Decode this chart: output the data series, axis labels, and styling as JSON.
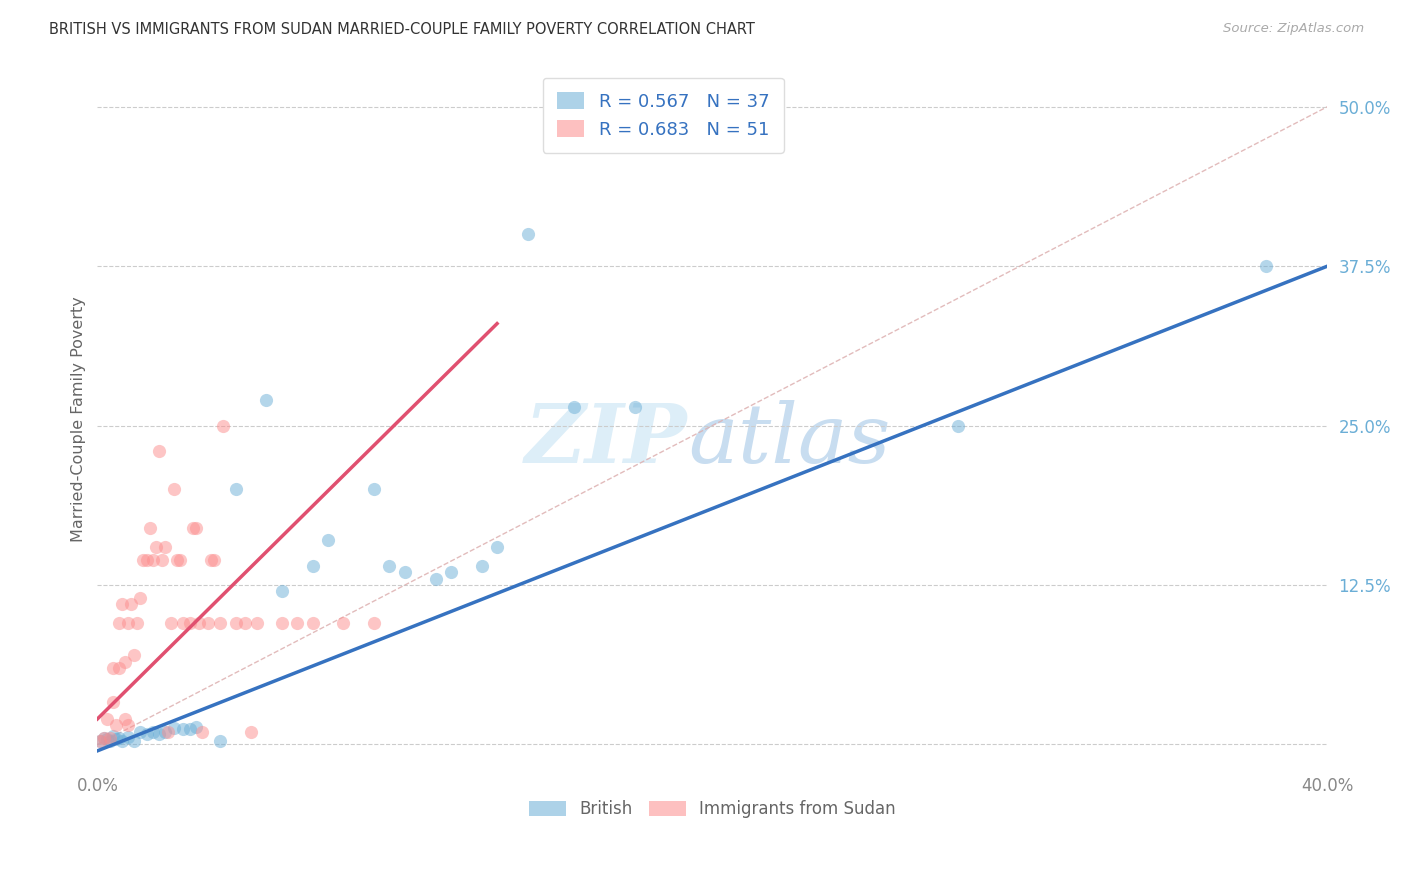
{
  "title": "BRITISH VS IMMIGRANTS FROM SUDAN MARRIED-COUPLE FAMILY POVERTY CORRELATION CHART",
  "source": "Source: ZipAtlas.com",
  "ylabel": "Married-Couple Family Poverty",
  "xlim": [
    0.0,
    0.4
  ],
  "ylim": [
    -0.02,
    0.53
  ],
  "yticks": [
    0.0,
    0.125,
    0.25,
    0.375,
    0.5
  ],
  "ytick_labels": [
    "",
    "12.5%",
    "25.0%",
    "37.5%",
    "50.0%"
  ],
  "xticks": [
    0.0,
    0.05,
    0.1,
    0.15,
    0.2,
    0.25,
    0.3,
    0.35,
    0.4
  ],
  "xtick_labels": [
    "0.0%",
    "",
    "",
    "",
    "",
    "",
    "",
    "",
    "40.0%"
  ],
  "british_color": "#6baed6",
  "sudan_color": "#fc8d8d",
  "british_R": 0.567,
  "british_N": 37,
  "sudan_R": 0.683,
  "sudan_N": 51,
  "legend_label_british": "British",
  "legend_label_sudan": "Immigrants from Sudan",
  "background_color": "#ffffff",
  "grid_color": "#cccccc",
  "british_scatter": [
    [
      0.001,
      0.003
    ],
    [
      0.002,
      0.005
    ],
    [
      0.003,
      0.004
    ],
    [
      0.004,
      0.003
    ],
    [
      0.005,
      0.007
    ],
    [
      0.006,
      0.004
    ],
    [
      0.007,
      0.005
    ],
    [
      0.008,
      0.003
    ],
    [
      0.01,
      0.006
    ],
    [
      0.012,
      0.003
    ],
    [
      0.014,
      0.01
    ],
    [
      0.016,
      0.008
    ],
    [
      0.018,
      0.01
    ],
    [
      0.02,
      0.008
    ],
    [
      0.022,
      0.01
    ],
    [
      0.025,
      0.013
    ],
    [
      0.028,
      0.012
    ],
    [
      0.03,
      0.012
    ],
    [
      0.032,
      0.014
    ],
    [
      0.04,
      0.003
    ],
    [
      0.045,
      0.2
    ],
    [
      0.055,
      0.27
    ],
    [
      0.06,
      0.12
    ],
    [
      0.07,
      0.14
    ],
    [
      0.075,
      0.16
    ],
    [
      0.09,
      0.2
    ],
    [
      0.095,
      0.14
    ],
    [
      0.1,
      0.135
    ],
    [
      0.11,
      0.13
    ],
    [
      0.115,
      0.135
    ],
    [
      0.125,
      0.14
    ],
    [
      0.13,
      0.155
    ],
    [
      0.14,
      0.4
    ],
    [
      0.155,
      0.265
    ],
    [
      0.175,
      0.265
    ],
    [
      0.28,
      0.25
    ],
    [
      0.38,
      0.375
    ]
  ],
  "sudan_scatter": [
    [
      0.001,
      0.003
    ],
    [
      0.002,
      0.005
    ],
    [
      0.003,
      0.02
    ],
    [
      0.004,
      0.005
    ],
    [
      0.005,
      0.033
    ],
    [
      0.005,
      0.06
    ],
    [
      0.006,
      0.015
    ],
    [
      0.007,
      0.095
    ],
    [
      0.007,
      0.06
    ],
    [
      0.008,
      0.11
    ],
    [
      0.009,
      0.065
    ],
    [
      0.009,
      0.02
    ],
    [
      0.01,
      0.015
    ],
    [
      0.01,
      0.095
    ],
    [
      0.011,
      0.11
    ],
    [
      0.012,
      0.07
    ],
    [
      0.013,
      0.095
    ],
    [
      0.014,
      0.115
    ],
    [
      0.015,
      0.145
    ],
    [
      0.016,
      0.145
    ],
    [
      0.017,
      0.17
    ],
    [
      0.018,
      0.145
    ],
    [
      0.019,
      0.155
    ],
    [
      0.02,
      0.23
    ],
    [
      0.021,
      0.145
    ],
    [
      0.022,
      0.155
    ],
    [
      0.023,
      0.01
    ],
    [
      0.024,
      0.095
    ],
    [
      0.025,
      0.2
    ],
    [
      0.026,
      0.145
    ],
    [
      0.027,
      0.145
    ],
    [
      0.028,
      0.095
    ],
    [
      0.03,
      0.095
    ],
    [
      0.031,
      0.17
    ],
    [
      0.032,
      0.17
    ],
    [
      0.033,
      0.095
    ],
    [
      0.034,
      0.01
    ],
    [
      0.036,
      0.095
    ],
    [
      0.037,
      0.145
    ],
    [
      0.038,
      0.145
    ],
    [
      0.04,
      0.095
    ],
    [
      0.041,
      0.25
    ],
    [
      0.045,
      0.095
    ],
    [
      0.048,
      0.095
    ],
    [
      0.05,
      0.01
    ],
    [
      0.052,
      0.095
    ],
    [
      0.06,
      0.095
    ],
    [
      0.065,
      0.095
    ],
    [
      0.07,
      0.095
    ],
    [
      0.08,
      0.095
    ],
    [
      0.09,
      0.095
    ]
  ],
  "diag_color": "#ddb0b0",
  "regression_blue": "#3672c0",
  "regression_pink": "#e05070"
}
